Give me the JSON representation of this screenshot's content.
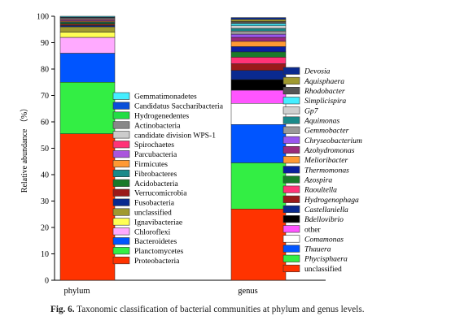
{
  "caption": {
    "label": "Fig. 6.",
    "text": "Taxonomic classification of bacterial communities at phylum and genus levels."
  },
  "chart_data": {
    "type": "bar",
    "stacked": true,
    "ylabel": "Relative abundance （%）",
    "ylim": [
      0,
      100
    ],
    "yticks": [
      0,
      10,
      20,
      30,
      40,
      50,
      60,
      70,
      80,
      90,
      100
    ],
    "categories": [
      "phylum",
      "genus"
    ],
    "bars": [
      {
        "category": "phylum",
        "segments": [
          {
            "name": "Proteobacteria",
            "value": 55.5,
            "color": "#ff3300"
          },
          {
            "name": "Planctomycetes",
            "value": 19.5,
            "color": "#33ee44"
          },
          {
            "name": "Bacteroidetes",
            "value": 11.0,
            "color": "#0055ff"
          },
          {
            "name": "Chloroflexi",
            "value": 6.0,
            "color": "#ffaaff"
          },
          {
            "name": "Ignavibacteriae",
            "value": 2.0,
            "color": "#ffff55"
          },
          {
            "name": "unclassified",
            "value": 2.0,
            "color": "#a09a30"
          },
          {
            "name": "Fusobacteria",
            "value": 0.5,
            "color": "#0a2a8f"
          },
          {
            "name": "Verrucomicrobia",
            "value": 0.5,
            "color": "#9a1a1a"
          },
          {
            "name": "Acidobacteria",
            "value": 0.5,
            "color": "#1a7a2a"
          },
          {
            "name": "Fibrobacteres",
            "value": 0.3,
            "color": "#1a8a8a"
          },
          {
            "name": "Firmicutes",
            "value": 0.3,
            "color": "#ff9933"
          },
          {
            "name": "Parcubacteria",
            "value": 0.3,
            "color": "#aa55dd"
          },
          {
            "name": "Spirochaetes",
            "value": 0.3,
            "color": "#ff3377"
          },
          {
            "name": "candidate division WPS-1",
            "value": 0.3,
            "color": "#cccccc"
          },
          {
            "name": "Actinobacteria",
            "value": 0.3,
            "color": "#888888"
          },
          {
            "name": "Hydrogenedentes",
            "value": 0.2,
            "color": "#22dd44"
          },
          {
            "name": "Candidatus Saccharibacteria",
            "value": 0.2,
            "color": "#0a4fd8"
          },
          {
            "name": "Gemmatimonadetes",
            "value": 0.3,
            "color": "#44eeff"
          }
        ]
      },
      {
        "category": "genus",
        "segments": [
          {
            "name": "unclassified",
            "value": 27.0,
            "color": "#ff3300"
          },
          {
            "name": "Phycisphaera",
            "value": 17.5,
            "color": "#33ee44"
          },
          {
            "name": "Thauera",
            "value": 14.5,
            "color": "#0055ff"
          },
          {
            "name": "Comamonas",
            "value": 8.0,
            "color": "#ffffff"
          },
          {
            "name": "other",
            "value": 5.0,
            "color": "#ff55ff"
          },
          {
            "name": "Bdellovibrio",
            "value": 4.0,
            "color": "#000000"
          },
          {
            "name": "Castellaniella",
            "value": 3.5,
            "color": "#0a2a8f"
          },
          {
            "name": "Hydrogenophaga",
            "value": 2.5,
            "color": "#9a1a1a"
          },
          {
            "name": "Raoultella",
            "value": 2.5,
            "color": "#ff3377"
          },
          {
            "name": "Azospira",
            "value": 2.0,
            "color": "#1a7a2a"
          },
          {
            "name": "Thermomonas",
            "value": 2.0,
            "color": "#0a1f9f"
          },
          {
            "name": "Melioribacter",
            "value": 2.0,
            "color": "#ff9933"
          },
          {
            "name": "Azohydromonas",
            "value": 1.5,
            "color": "#9a2a7a"
          },
          {
            "name": "Chryseobacterium",
            "value": 1.2,
            "color": "#9955ee"
          },
          {
            "name": "Gemmobacter",
            "value": 1.2,
            "color": "#999999"
          },
          {
            "name": "Aquimonas",
            "value": 1.0,
            "color": "#1a8a8a"
          },
          {
            "name": "Gp7",
            "value": 1.0,
            "color": "#d0d0d0"
          },
          {
            "name": "Simplicispira",
            "value": 0.8,
            "color": "#44eeff"
          },
          {
            "name": "Rhodobacter",
            "value": 0.8,
            "color": "#555555"
          },
          {
            "name": "Aquisphaera",
            "value": 0.8,
            "color": "#a09a30"
          },
          {
            "name": "Devosia",
            "value": 0.7,
            "color": "#0a2a8f"
          }
        ]
      }
    ],
    "legends": [
      {
        "for": "phylum",
        "italic": false,
        "entries": [
          {
            "name": "Gemmatimonadetes",
            "color": "#44eeff"
          },
          {
            "name": "Candidatus Saccharibacteria",
            "color": "#0a4fd8"
          },
          {
            "name": "Hydrogenedentes",
            "color": "#22dd44"
          },
          {
            "name": "Actinobacteria",
            "color": "#888888"
          },
          {
            "name": "candidate division WPS-1",
            "color": "#cccccc"
          },
          {
            "name": "Spirochaetes",
            "color": "#ff3377"
          },
          {
            "name": "Parcubacteria",
            "color": "#aa55dd"
          },
          {
            "name": "Firmicutes",
            "color": "#ff9933"
          },
          {
            "name": "Fibrobacteres",
            "color": "#1a8a8a"
          },
          {
            "name": "Acidobacteria",
            "color": "#1a7a2a"
          },
          {
            "name": "Verrucomicrobia",
            "color": "#9a1a1a"
          },
          {
            "name": "Fusobacteria",
            "color": "#0a2a8f"
          },
          {
            "name": "unclassified",
            "color": "#a09a30"
          },
          {
            "name": "Ignavibacteriae",
            "color": "#ffff55"
          },
          {
            "name": "Chloroflexi",
            "color": "#ffaaff"
          },
          {
            "name": "Bacteroidetes",
            "color": "#0055ff"
          },
          {
            "name": "Planctomycetes",
            "color": "#33ee44"
          },
          {
            "name": "Proteobacteria",
            "color": "#ff3300"
          }
        ]
      },
      {
        "for": "genus",
        "italic": true,
        "entries": [
          {
            "name": "Devosia",
            "color": "#0a2a8f"
          },
          {
            "name": "Aquisphaera",
            "color": "#a09a30"
          },
          {
            "name": "Rhodobacter",
            "color": "#555555"
          },
          {
            "name": "Simplicispira",
            "color": "#44eeff"
          },
          {
            "name": "Gp7",
            "color": "#d0d0d0"
          },
          {
            "name": "Aquimonas",
            "color": "#1a8a8a"
          },
          {
            "name": "Gemmobacter",
            "color": "#999999"
          },
          {
            "name": "Chryseobacterium",
            "color": "#9955ee"
          },
          {
            "name": "Azohydromonas",
            "color": "#9a2a7a"
          },
          {
            "name": "Melioribacter",
            "color": "#ff9933"
          },
          {
            "name": "Thermomonas",
            "color": "#0a1f9f"
          },
          {
            "name": "Azospira",
            "color": "#1a7a2a"
          },
          {
            "name": "Raoultella",
            "color": "#ff3377"
          },
          {
            "name": "Hydrogenophaga",
            "color": "#9a1a1a"
          },
          {
            "name": "Castellaniella",
            "color": "#0a2a8f"
          },
          {
            "name": "Bdellovibrio",
            "color": "#000000"
          },
          {
            "name": "other",
            "color": "#ff55ff",
            "italic": false
          },
          {
            "name": "Comamonas",
            "color": "#ffffff"
          },
          {
            "name": "Thauera",
            "color": "#0055ff"
          },
          {
            "name": "Phycisphaera",
            "color": "#33ee44"
          },
          {
            "name": "unclassified",
            "color": "#ff3300",
            "italic": false
          }
        ]
      }
    ]
  }
}
